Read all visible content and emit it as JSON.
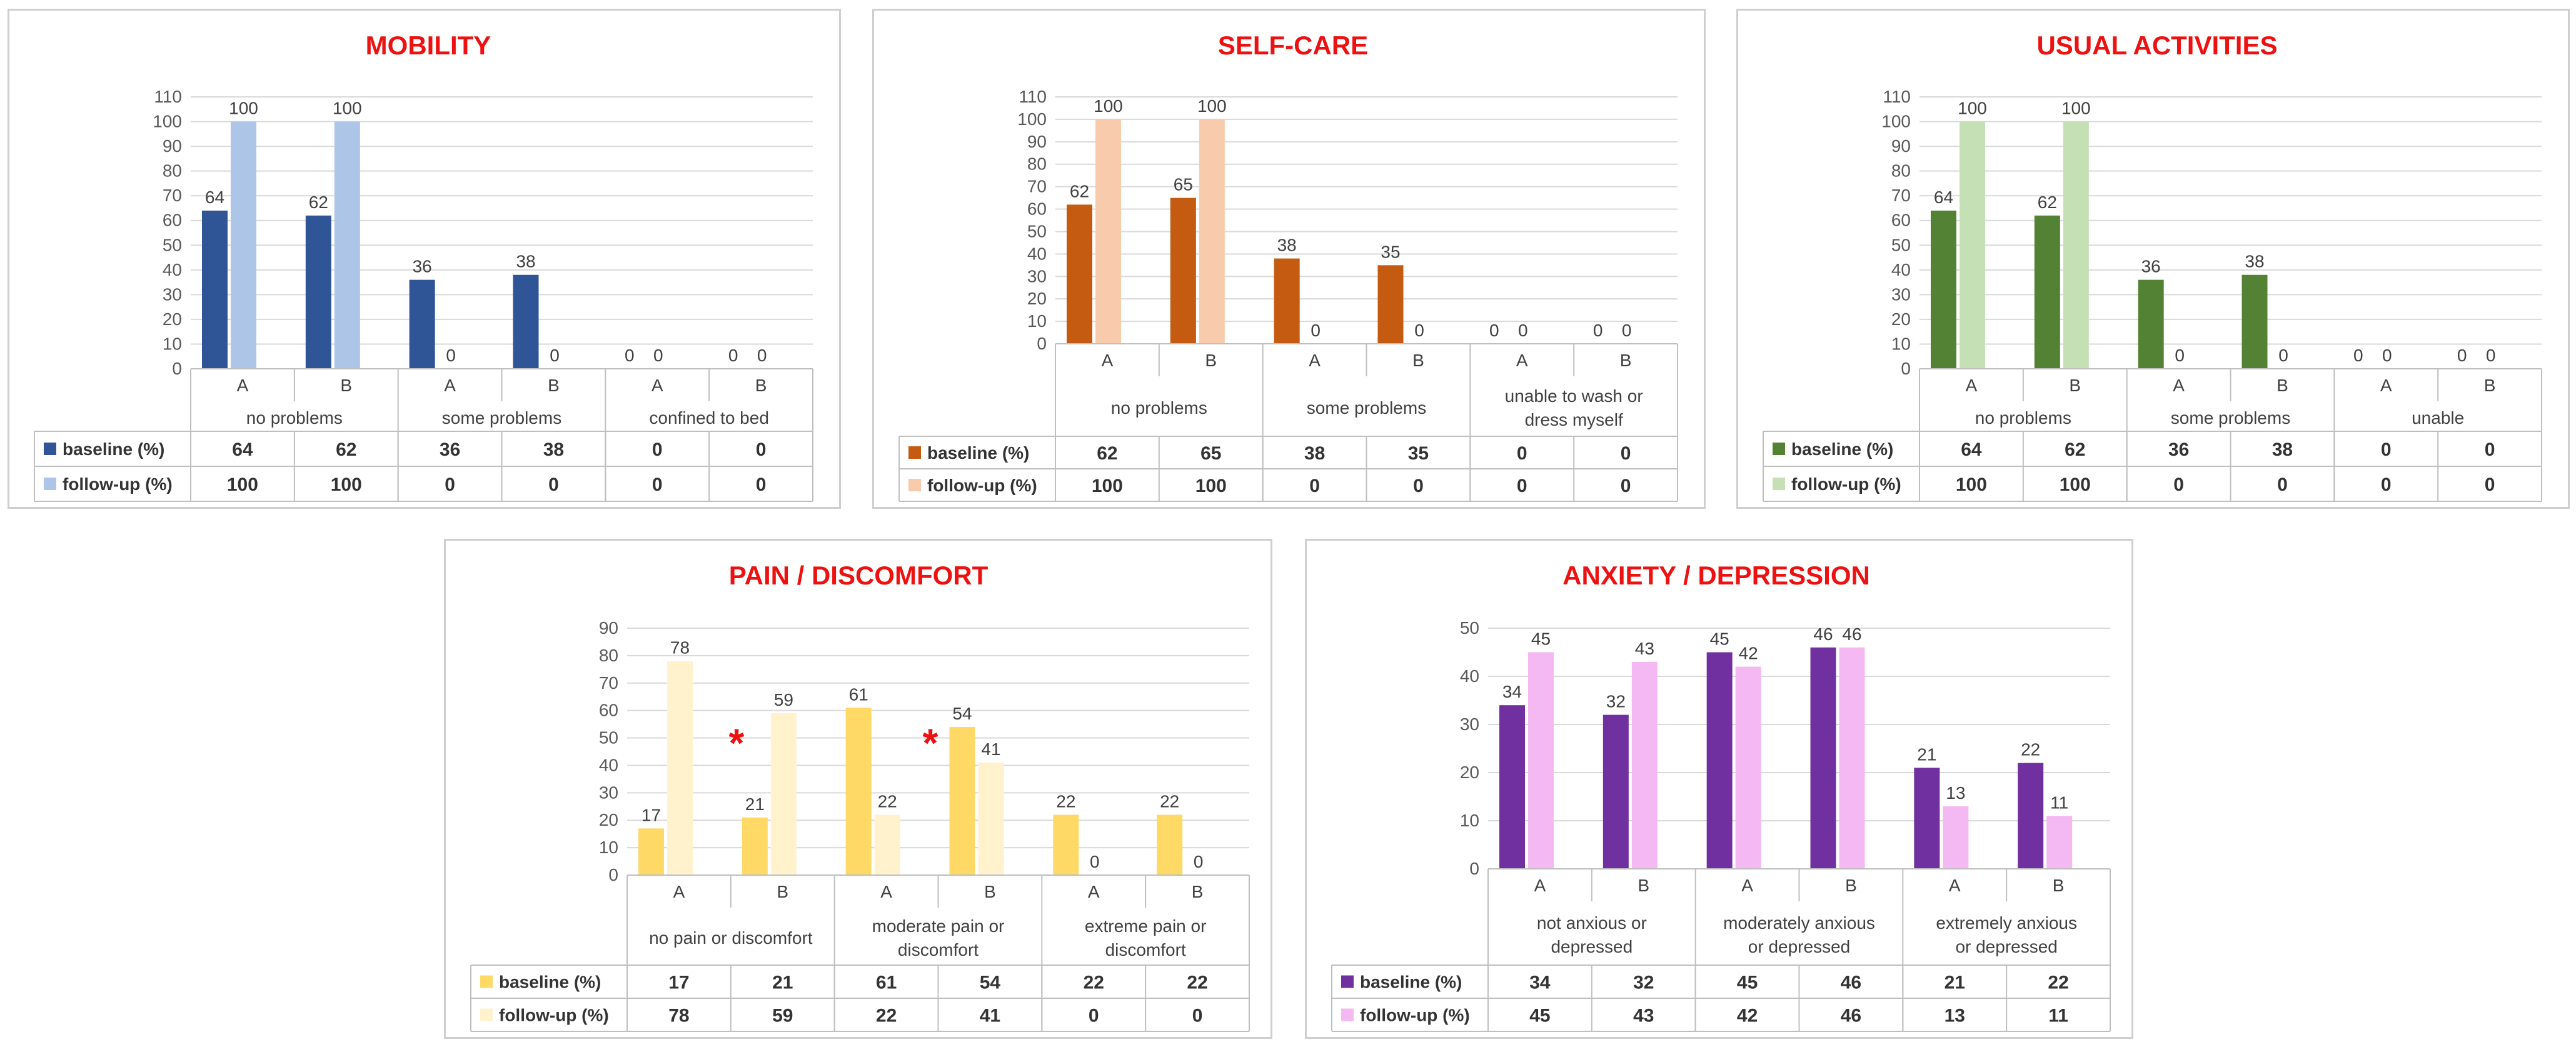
{
  "chart_data": [
    {
      "type": "bar",
      "title": "MOBILITY",
      "ylim": [
        0,
        110
      ],
      "yticks": [
        0,
        10,
        20,
        30,
        40,
        50,
        60,
        70,
        80,
        90,
        100,
        110
      ],
      "x_sub": [
        "A",
        "B",
        "A",
        "B",
        "A",
        "B"
      ],
      "groups": [
        "no problems",
        "some problems",
        "confined to bed"
      ],
      "series": [
        {
          "name": "baseline (%)",
          "color": "#2f5597",
          "values": [
            64,
            62,
            36,
            38,
            0,
            0
          ]
        },
        {
          "name": "follow-up (%)",
          "color": "#adc5e7",
          "values": [
            100,
            100,
            0,
            0,
            0,
            0
          ]
        }
      ]
    },
    {
      "type": "bar",
      "title": "SELF-CARE",
      "ylim": [
        0,
        110
      ],
      "yticks": [
        0,
        10,
        20,
        30,
        40,
        50,
        60,
        70,
        80,
        90,
        100,
        110
      ],
      "x_sub": [
        "A",
        "B",
        "A",
        "B",
        "A",
        "B"
      ],
      "groups": [
        "no problems",
        "some problems",
        "unable to wash or dress myself"
      ],
      "series": [
        {
          "name": "baseline (%)",
          "color": "#c55a11",
          "values": [
            62,
            65,
            38,
            35,
            0,
            0
          ]
        },
        {
          "name": "follow-up (%)",
          "color": "#f8cbad",
          "values": [
            100,
            100,
            0,
            0,
            0,
            0
          ]
        }
      ]
    },
    {
      "type": "bar",
      "title": "USUAL ACTIVITIES",
      "ylim": [
        0,
        110
      ],
      "yticks": [
        0,
        10,
        20,
        30,
        40,
        50,
        60,
        70,
        80,
        90,
        100,
        110
      ],
      "x_sub": [
        "A",
        "B",
        "A",
        "B",
        "A",
        "B"
      ],
      "groups": [
        "no problems",
        "some problems",
        "unable"
      ],
      "series": [
        {
          "name": "baseline (%)",
          "color": "#548235",
          "values": [
            64,
            62,
            36,
            38,
            0,
            0
          ]
        },
        {
          "name": "follow-up (%)",
          "color": "#c5e0b4",
          "values": [
            100,
            100,
            0,
            0,
            0,
            0
          ]
        }
      ]
    },
    {
      "type": "bar",
      "title": "PAIN / DISCOMFORT",
      "ylim": [
        0,
        90
      ],
      "yticks": [
        0,
        10,
        20,
        30,
        40,
        50,
        60,
        70,
        80,
        90
      ],
      "x_sub": [
        "A",
        "B",
        "A",
        "B",
        "A",
        "B"
      ],
      "groups": [
        "no pain or discomfort",
        "moderate pain or discomfort",
        "extreme pain or discomfort"
      ],
      "annotations": [
        "*",
        "*"
      ],
      "series": [
        {
          "name": "baseline (%)",
          "color": "#ffd966",
          "values": [
            17,
            21,
            61,
            54,
            22,
            22
          ]
        },
        {
          "name": "follow-up (%)",
          "color": "#fff2cc",
          "values": [
            78,
            59,
            22,
            41,
            0,
            0
          ]
        }
      ]
    },
    {
      "type": "bar",
      "title": "ANXIETY / DEPRESSION",
      "ylim": [
        0,
        50
      ],
      "yticks": [
        0,
        10,
        20,
        30,
        40,
        50
      ],
      "x_sub": [
        "A",
        "B",
        "A",
        "B",
        "A",
        "B"
      ],
      "groups": [
        "not anxious or depressed",
        "moderately anxious or depressed",
        "extremely anxious or depressed"
      ],
      "series": [
        {
          "name": "baseline (%)",
          "color": "#7030a0",
          "values": [
            34,
            32,
            45,
            46,
            21,
            22
          ]
        },
        {
          "name": "follow-up (%)",
          "color": "#f4b8f2",
          "values": [
            45,
            43,
            42,
            46,
            13,
            11
          ]
        }
      ]
    }
  ]
}
